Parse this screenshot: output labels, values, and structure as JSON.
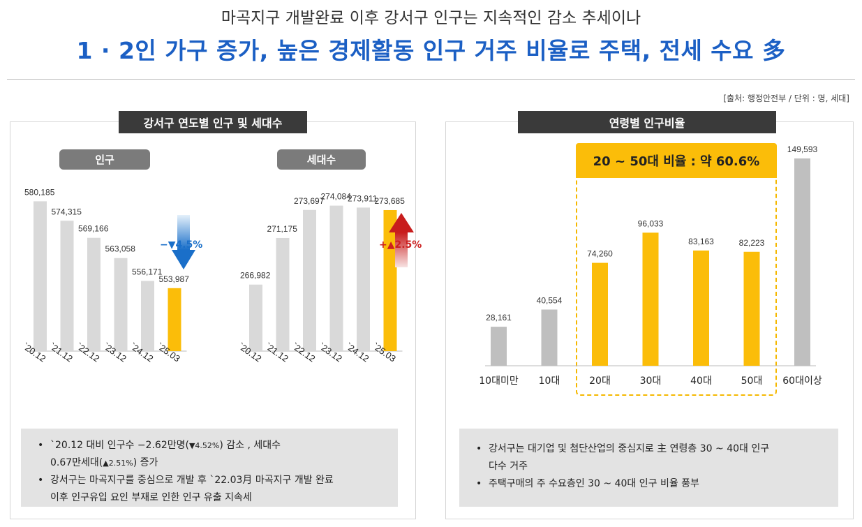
{
  "header": {
    "subtitle": "마곡지구 개발완료 이후 강서구 인구는 지속적인 감소 추세이나",
    "title": "1 · 2인 가구 증가, 높은 경제활동 인구 거주 비율로 주택, 전세 수요 多",
    "source": "[출처: 행정안전부 / 단위 : 명, 세대]"
  },
  "left_panel": {
    "ribbon": "강서구 연도별 인구 및 세대수",
    "pill_population": "인구",
    "pill_households": "세대수",
    "change_population": "−▼4.5%",
    "change_households": "+▲2.5%",
    "notes": [
      {
        "a": "`20.12 대비 인구수 −2.62만명(",
        "b": "▼4.52%",
        "c": ") 감소 , 세대수",
        "d": "0.67만세대(",
        "e": "▲2.51%",
        "f": ") 증가"
      },
      {
        "a": "강서구는 마곡지구를 중심으로 개발 후 `22.03月 마곡지구 개발 완료",
        "d": "이후 인구유입 요인 부재로 인한 인구 유출 지속세"
      }
    ]
  },
  "right_panel": {
    "ribbon": "연령별 인구비율",
    "highlight": "20 ~ 50대 비율 : 약 60.6%",
    "notes": [
      {
        "a": "강서구는 대기업 및 첨단산업의 중심지로 主 연령층 30 ~ 40대 인구",
        "b": "다수 거주"
      },
      {
        "a": "주택구매의 주 수요층인 30 ~ 40대 인구 비율 풍부"
      }
    ]
  },
  "colors": {
    "bar_gray": "#d9d9d9",
    "bar_gray_dark": "#bfbfbf",
    "bar_highlight": "#fbbd09",
    "title_blue": "#1b5fc4"
  },
  "chart_data": [
    {
      "type": "bar",
      "categories": [
        "`20.12",
        "`21.12",
        "`22.12",
        "`23.12",
        "`24.12",
        "`25.03"
      ],
      "values": [
        580185,
        574315,
        569166,
        563058,
        556171,
        553987
      ],
      "labels": [
        "580,185",
        "574,315",
        "569,166",
        "563,058",
        "556,171",
        "553,987"
      ],
      "highlight_index": 5,
      "ylim": [
        535000,
        583000
      ]
    },
    {
      "type": "bar",
      "categories": [
        "`20.12",
        "`21.12",
        "`22.12",
        "`23.12",
        "`24.12",
        "`25.03"
      ],
      "values": [
        266982,
        271175,
        273697,
        274084,
        273911,
        273685
      ],
      "labels": [
        "266,982",
        "271,175",
        "273,697",
        "274,084",
        "273,911",
        "273,685"
      ],
      "highlight_index": 5,
      "ylim": [
        261000,
        274500
      ]
    },
    {
      "type": "bar",
      "categories": [
        "10대미만",
        "10대",
        "20대",
        "30대",
        "40대",
        "50대",
        "60대이상"
      ],
      "values": [
        28161,
        40554,
        74260,
        96033,
        83163,
        82223,
        149593
      ],
      "labels": [
        "28,161",
        "40,554",
        "74,260",
        "96,033",
        "83,163",
        "82,223",
        "149,593"
      ],
      "highlight_indices": [
        2,
        3,
        4,
        5
      ],
      "ylim": [
        0,
        149593
      ]
    }
  ]
}
